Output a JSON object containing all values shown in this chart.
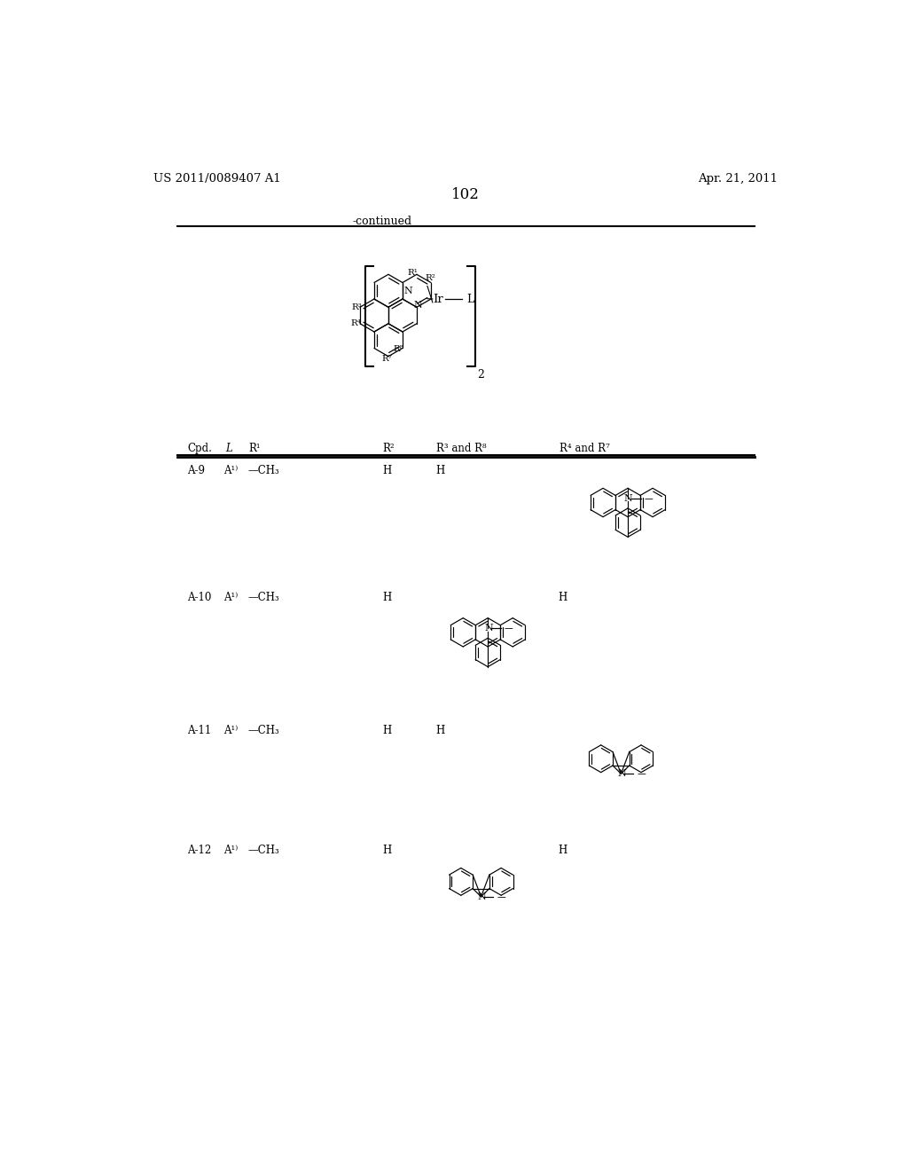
{
  "bg_color": "#ffffff",
  "header_left": "US 2011/0089407 A1",
  "header_right": "Apr. 21, 2011",
  "page_number": "102",
  "continued_text": "-continued"
}
